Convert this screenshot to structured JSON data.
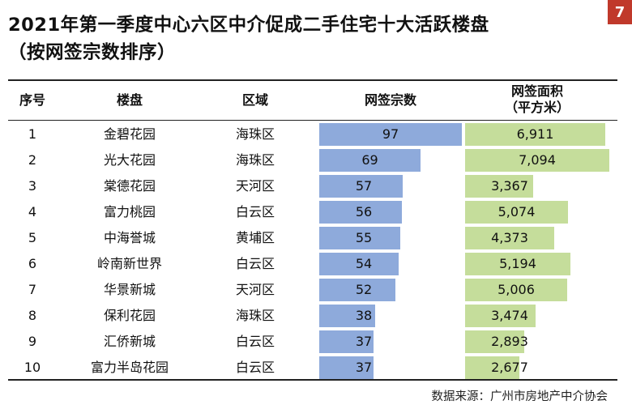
{
  "title_line1": "2021年第一季度中心六区中介促成二手住宅十大活跃楼盘",
  "title_line2": "（按网签宗数排序）",
  "page_number": "7",
  "headers": {
    "rank": "序号",
    "estate": "楼盘",
    "district": "区域",
    "deals": "网签宗数",
    "area_line1": "网签面积",
    "area_line2": "（平方米）"
  },
  "rows": [
    {
      "rank": "1",
      "estate": "金碧花园",
      "district": "海珠区",
      "deals": 97,
      "area": 6911,
      "deals_label": "97",
      "area_label": "6,911"
    },
    {
      "rank": "2",
      "estate": "光大花园",
      "district": "海珠区",
      "deals": 69,
      "area": 7094,
      "deals_label": "69",
      "area_label": "7,094"
    },
    {
      "rank": "3",
      "estate": "棠德花园",
      "district": "天河区",
      "deals": 57,
      "area": 3367,
      "deals_label": "57",
      "area_label": "3,367"
    },
    {
      "rank": "4",
      "estate": "富力桃园",
      "district": "白云区",
      "deals": 56,
      "area": 5074,
      "deals_label": "56",
      "area_label": "5,074"
    },
    {
      "rank": "5",
      "estate": "中海誉城",
      "district": "黄埔区",
      "deals": 55,
      "area": 4373,
      "deals_label": "55",
      "area_label": "4,373"
    },
    {
      "rank": "6",
      "estate": "岭南新世界",
      "district": "白云区",
      "deals": 54,
      "area": 5194,
      "deals_label": "54",
      "area_label": "5,194"
    },
    {
      "rank": "7",
      "estate": "华景新城",
      "district": "天河区",
      "deals": 52,
      "area": 5006,
      "deals_label": "52",
      "area_label": "5,006"
    },
    {
      "rank": "8",
      "estate": "保利花园",
      "district": "海珠区",
      "deals": 38,
      "area": 3474,
      "deals_label": "38",
      "area_label": "3,474"
    },
    {
      "rank": "9",
      "estate": "汇侨新城",
      "district": "白云区",
      "deals": 37,
      "area": 2893,
      "deals_label": "37",
      "area_label": "2,893"
    },
    {
      "rank": "10",
      "estate": "富力半岛花园",
      "district": "白云区",
      "deals": 37,
      "area": 2677,
      "deals_label": "37",
      "area_label": "2,677"
    }
  ],
  "source": "数据来源：广州市房地产中介协会",
  "colors": {
    "deals_bar": "#8eaadb",
    "area_bar": "#c5dd9b",
    "badge": "#c0392b"
  }
}
